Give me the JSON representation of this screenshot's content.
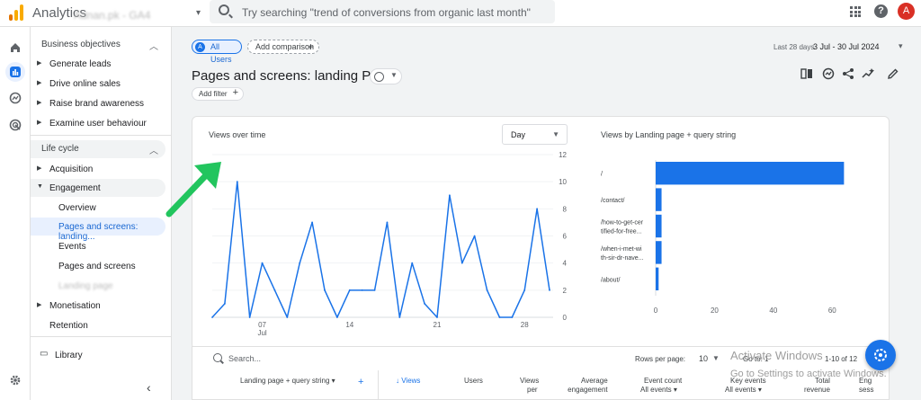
{
  "app": {
    "name": "Analytics",
    "account": "Adnan.pk - GA4",
    "brand_color": "#f9ab00"
  },
  "search": {
    "placeholder": "Try searching \"trend of conversions from organic last month\""
  },
  "header": {
    "avatar_letter": "A",
    "help_glyph": "?"
  },
  "sidebar": {
    "business_objectives": "Business objectives",
    "bo_items": [
      "Generate leads",
      "Drive online sales",
      "Raise brand awareness",
      "Examine user behaviour"
    ],
    "life_cycle": "Life cycle",
    "acquisition": "Acquisition",
    "engagement": "Engagement",
    "engagement_items": [
      "Overview",
      "Pages and screens: landing...",
      "Events",
      "Pages and screens",
      "Landing page"
    ],
    "monetisation": "Monetisation",
    "retention": "Retention",
    "library": "Library"
  },
  "toolbar": {
    "all_users": "All Users",
    "all_users_letter": "A",
    "add_comparison": "Add comparison",
    "date_label": "Last 28 days",
    "date_range": "3 Jul - 30 Jul 2024",
    "page_title": "Pages and screens: landing Page",
    "add_filter": "Add filter"
  },
  "views_card": {
    "title": "Views over time",
    "granularity": "Day"
  },
  "bar_card": {
    "title": "Views by Landing page + query string"
  },
  "chart_data": [
    {
      "type": "line",
      "title": "Views over time",
      "x": [
        "Jul 3",
        "Jul 4",
        "Jul 5",
        "Jul 6",
        "Jul 7",
        "Jul 8",
        "Jul 9",
        "Jul 10",
        "Jul 11",
        "Jul 12",
        "Jul 13",
        "Jul 14",
        "Jul 15",
        "Jul 16",
        "Jul 17",
        "Jul 18",
        "Jul 19",
        "Jul 20",
        "Jul 21",
        "Jul 22",
        "Jul 23",
        "Jul 24",
        "Jul 25",
        "Jul 26",
        "Jul 27",
        "Jul 28",
        "Jul 29",
        "Jul 30"
      ],
      "x_tick_labels": [
        {
          "label": "07",
          "sub": "Jul",
          "index": 4
        },
        {
          "label": "14",
          "sub": "",
          "index": 11
        },
        {
          "label": "21",
          "sub": "",
          "index": 18
        },
        {
          "label": "28",
          "sub": "",
          "index": 25
        }
      ],
      "values": [
        0,
        1,
        10,
        0,
        4,
        2,
        0,
        4,
        7,
        2,
        0,
        2,
        2,
        2,
        7,
        0,
        4,
        1,
        0,
        9,
        4,
        6,
        2,
        0,
        0,
        2,
        8,
        2
      ],
      "ylim": [
        0,
        12
      ],
      "y_ticks": [
        0,
        2,
        4,
        6,
        8,
        10,
        12
      ],
      "series_color": "#1a73e8"
    },
    {
      "type": "bar",
      "orientation": "horizontal",
      "title": "Views by Landing page + query string",
      "categories": [
        [
          "/"
        ],
        [
          "/contact/"
        ],
        [
          "/how-to-get-cer",
          "tified-for-free..."
        ],
        [
          "/when-i-met-wi",
          "th-sir-dr-nave..."
        ],
        [
          "/about/"
        ]
      ],
      "values": [
        64,
        2,
        2,
        2,
        1
      ],
      "xlim": [
        0,
        70
      ],
      "x_ticks": [
        0,
        20,
        40,
        60
      ],
      "series_color": "#1a73e8"
    }
  ],
  "table": {
    "search_placeholder": "Search...",
    "rows_per_page_label": "Rows per page:",
    "rows_per_page": "10",
    "goto_label": "Go to:",
    "goto_value": "1",
    "pager": "1-10 of 12",
    "dimension": "Landing page + query string",
    "columns": [
      {
        "l1": "↓ Views",
        "l2": ""
      },
      {
        "l1": "Users",
        "l2": ""
      },
      {
        "l1": "Views",
        "l2": "per"
      },
      {
        "l1": "Average",
        "l2": "engagement"
      },
      {
        "l1": "Event count",
        "l2": "All events ▾"
      },
      {
        "l1": "Key events",
        "l2": "All events ▾"
      },
      {
        "l1": "Total",
        "l2": "revenue"
      },
      {
        "l1": "Eng",
        "l2": "sess"
      }
    ]
  },
  "watermark": {
    "line1": "Activate Windows",
    "line2": "Go to Settings to activate Windows."
  }
}
